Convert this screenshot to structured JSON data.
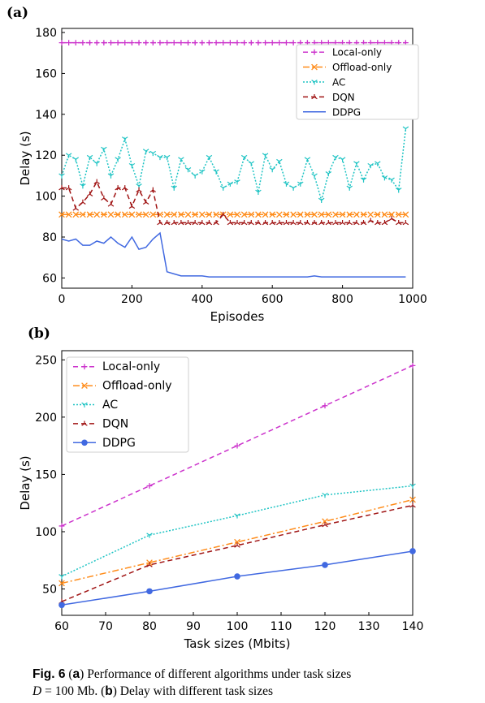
{
  "panels": {
    "a": "(a)",
    "b": "(b)"
  },
  "caption": {
    "fig": "Fig. 6",
    "t1": " (",
    "a": "a",
    "t2": ") Performance of different algorithms under task sizes",
    "dvar": "D",
    "t3": " = 100 Mb. (",
    "b": "b",
    "t4": ") Delay with different task sizes"
  },
  "chart_data": [
    {
      "id": "a",
      "type": "line",
      "xlabel": "Episodes",
      "ylabel": "Delay (s)",
      "xlim": [
        0,
        1000
      ],
      "ylim": [
        55,
        182
      ],
      "xticks": [
        0,
        200,
        400,
        600,
        800,
        1000
      ],
      "yticks": [
        60,
        80,
        100,
        120,
        140,
        160,
        180
      ],
      "legend_position": "upper right",
      "grid": false,
      "series": [
        {
          "name": "Local-only",
          "color": "#cc33cc",
          "dash": "6,4",
          "marker": "plus",
          "x": [
            0,
            20,
            40,
            60,
            80,
            100,
            120,
            140,
            160,
            180,
            200,
            220,
            240,
            260,
            280,
            300,
            320,
            340,
            360,
            380,
            400,
            420,
            440,
            460,
            480,
            500,
            520,
            540,
            560,
            580,
            600,
            620,
            640,
            660,
            680,
            700,
            720,
            740,
            760,
            780,
            800,
            820,
            840,
            860,
            880,
            900,
            920,
            940,
            960,
            980
          ],
          "y": [
            175,
            175,
            175,
            175,
            175,
            175,
            175,
            175,
            175,
            175,
            175,
            175,
            175,
            175,
            175,
            175,
            175,
            175,
            175,
            175,
            175,
            175,
            175,
            175,
            175,
            175,
            175,
            175,
            175,
            175,
            175,
            175,
            175,
            175,
            175,
            175,
            175,
            175,
            175,
            175,
            175,
            175,
            175,
            175,
            175,
            175,
            175,
            175,
            175,
            175
          ]
        },
        {
          "name": "Offload-only",
          "color": "#ff8c1a",
          "dash": "8,3,2,3",
          "marker": "x",
          "x": [
            0,
            20,
            40,
            60,
            80,
            100,
            120,
            140,
            160,
            180,
            200,
            220,
            240,
            260,
            280,
            300,
            320,
            340,
            360,
            380,
            400,
            420,
            440,
            460,
            480,
            500,
            520,
            540,
            560,
            580,
            600,
            620,
            640,
            660,
            680,
            700,
            720,
            740,
            760,
            780,
            800,
            820,
            840,
            860,
            880,
            900,
            920,
            940,
            960,
            980
          ],
          "y": [
            91,
            91,
            91,
            91,
            91,
            91,
            91,
            91,
            91,
            91,
            91,
            91,
            91,
            91,
            91,
            91,
            91,
            91,
            91,
            91,
            91,
            91,
            91,
            91,
            91,
            91,
            91,
            91,
            91,
            91,
            91,
            91,
            91,
            91,
            91,
            91,
            91,
            91,
            91,
            91,
            91,
            91,
            91,
            91,
            91,
            91,
            91,
            91,
            91,
            91
          ]
        },
        {
          "name": "AC",
          "color": "#1fc4c4",
          "dash": "2,2",
          "marker": "tri_down",
          "x": [
            0,
            20,
            40,
            60,
            80,
            100,
            120,
            140,
            160,
            180,
            200,
            220,
            240,
            260,
            280,
            300,
            320,
            340,
            360,
            380,
            400,
            420,
            440,
            460,
            480,
            500,
            520,
            540,
            560,
            580,
            600,
            620,
            640,
            660,
            680,
            700,
            720,
            740,
            760,
            780,
            800,
            820,
            840,
            860,
            880,
            900,
            920,
            940,
            960,
            980
          ],
          "y": [
            110,
            120,
            118,
            105,
            119,
            116,
            123,
            110,
            118,
            128,
            115,
            105,
            122,
            121,
            119,
            119,
            104,
            118,
            113,
            110,
            112,
            119,
            112,
            104,
            106,
            107,
            119,
            116,
            102,
            120,
            113,
            117,
            106,
            104,
            106,
            118,
            110,
            98,
            111,
            119,
            118,
            104,
            116,
            108,
            115,
            116,
            109,
            108,
            103,
            133
          ]
        },
        {
          "name": "DQN",
          "color": "#a01414",
          "dash": "6,4",
          "marker": "tri_up",
          "x": [
            0,
            20,
            40,
            60,
            80,
            100,
            120,
            140,
            160,
            180,
            200,
            220,
            240,
            260,
            280,
            300,
            320,
            340,
            360,
            380,
            400,
            420,
            440,
            460,
            480,
            500,
            520,
            540,
            560,
            580,
            600,
            620,
            640,
            660,
            680,
            700,
            720,
            740,
            760,
            780,
            800,
            820,
            840,
            860,
            880,
            900,
            920,
            940,
            960,
            980
          ],
          "y": [
            104,
            104,
            94,
            97,
            101,
            107,
            99,
            96,
            104,
            104,
            95,
            103,
            97,
            103,
            87,
            87,
            87,
            87,
            87,
            87,
            87,
            87,
            87,
            91,
            87,
            87,
            87,
            87,
            87,
            87,
            87,
            87,
            87,
            87,
            87,
            87,
            87,
            87,
            87,
            87,
            87,
            87,
            87,
            87,
            88,
            87,
            87,
            89,
            87,
            87
          ]
        },
        {
          "name": "DDPG",
          "color": "#4169e1",
          "dash": "",
          "marker": "none",
          "x": [
            0,
            20,
            40,
            60,
            80,
            100,
            120,
            140,
            160,
            180,
            200,
            220,
            240,
            260,
            280,
            300,
            320,
            340,
            360,
            380,
            400,
            420,
            440,
            460,
            480,
            500,
            520,
            540,
            560,
            580,
            600,
            620,
            640,
            660,
            680,
            700,
            720,
            740,
            760,
            780,
            800,
            820,
            840,
            860,
            880,
            900,
            920,
            940,
            960,
            980
          ],
          "y": [
            79,
            78,
            79,
            76,
            76,
            78,
            77,
            80,
            77,
            75,
            80,
            74,
            75,
            79,
            82,
            63,
            62,
            61,
            61,
            61,
            61,
            60.5,
            60.5,
            60.5,
            60.5,
            60.5,
            60.5,
            60.5,
            60.5,
            60.5,
            60.5,
            60.5,
            60.5,
            60.5,
            60.5,
            60.5,
            61,
            60.5,
            60.5,
            60.5,
            60.5,
            60.5,
            60.5,
            60.5,
            60.5,
            60.5,
            60.5,
            60.5,
            60.5,
            60.5
          ]
        }
      ]
    },
    {
      "id": "b",
      "type": "line",
      "xlabel": "Task sizes (Mbits)",
      "ylabel": "Delay (s)",
      "xlim": [
        60,
        140
      ],
      "ylim": [
        27,
        258
      ],
      "xticks": [
        60,
        70,
        80,
        90,
        100,
        110,
        120,
        130,
        140
      ],
      "yticks": [
        50,
        100,
        150,
        200,
        250
      ],
      "legend_position": "upper left",
      "grid": false,
      "series": [
        {
          "name": "Local-only",
          "color": "#cc33cc",
          "dash": "6,4",
          "marker": "plus",
          "x": [
            60,
            80,
            100,
            120,
            140
          ],
          "y": [
            105,
            140,
            175,
            210,
            245
          ]
        },
        {
          "name": "Offload-only",
          "color": "#ff8c1a",
          "dash": "8,3,2,3",
          "marker": "x",
          "x": [
            60,
            80,
            100,
            120,
            140
          ],
          "y": [
            55,
            73,
            91,
            109,
            128
          ]
        },
        {
          "name": "AC",
          "color": "#1fc4c4",
          "dash": "2,2",
          "marker": "tri_down",
          "x": [
            60,
            80,
            100,
            120,
            140
          ],
          "y": [
            61,
            97,
            114,
            132,
            140
          ]
        },
        {
          "name": "DQN",
          "color": "#a01414",
          "dash": "6,4",
          "marker": "tri_up",
          "x": [
            60,
            80,
            100,
            120,
            140
          ],
          "y": [
            39,
            71,
            88,
            106,
            123
          ]
        },
        {
          "name": "DDPG",
          "color": "#4169e1",
          "dash": "",
          "marker": "circle",
          "x": [
            60,
            80,
            100,
            120,
            140
          ],
          "y": [
            36,
            48,
            61,
            71,
            83
          ]
        }
      ]
    }
  ]
}
